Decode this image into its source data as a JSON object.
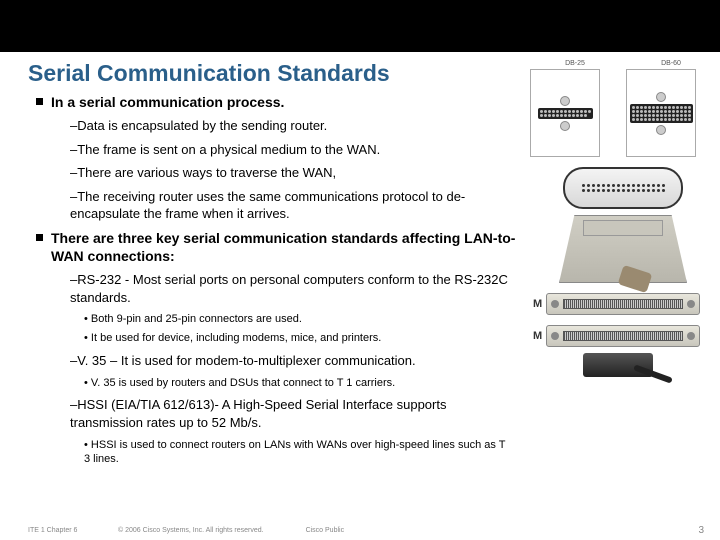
{
  "slide": {
    "title": "Serial Communication Standards",
    "section1": {
      "heading": "In a serial communication process.",
      "items": [
        "–Data is encapsulated by the sending router.",
        "–The frame is sent on a physical medium to the WAN.",
        "–There are various ways to traverse the WAN,",
        "–The receiving router uses the same communications protocol to de-encapsulate the frame when it arrives."
      ]
    },
    "section2": {
      "heading": "There are three key serial communication standards affecting LAN-to-WAN connections:",
      "rs232": {
        "text": "–RS-232 - Most serial ports on personal computers conform to the RS-232C standards.",
        "sub": [
          "• Both 9-pin and 25-pin connectors are used.",
          "• It be used for device, including modems, mice, and printers."
        ]
      },
      "v35": {
        "text": "–V. 35 – It is used for modem-to-multiplexer communication.",
        "sub": [
          "• V. 35 is used by routers and DSUs that connect to T 1 carriers."
        ]
      },
      "hssi": {
        "text": "–HSSI (EIA/TIA 612/613)- A High-Speed Serial Interface supports transmission rates up to 52 Mb/s.",
        "sub": [
          "• HSSI is used to connect routers on LANs with WANs over high-speed lines such as T 3 lines."
        ]
      }
    }
  },
  "diagrams": {
    "db_labels": [
      "DB-25",
      "DB-60"
    ],
    "conn_marker": "M"
  },
  "footer": {
    "left": "ITE 1 Chapter 6",
    "center": "© 2006 Cisco Systems, Inc. All rights reserved.",
    "tag": "Cisco Public",
    "page": "3"
  },
  "style": {
    "title_color": "#2a5f8a",
    "topbar_color": "#000000",
    "title_fontsize": 23,
    "main_bullet_fontsize": 14,
    "sub_bullet_fontsize": 13,
    "subsub_bullet_fontsize": 11,
    "footer_fontsize": 7
  }
}
